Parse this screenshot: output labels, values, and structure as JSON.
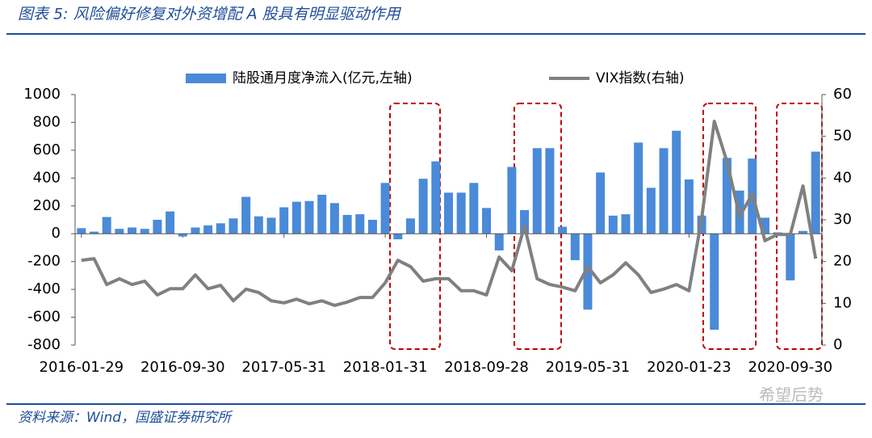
{
  "header": {
    "title": "图表 5: 风险偏好修复对外资增配 A 股具有明显驱动作用"
  },
  "chart_data": {
    "type": "bar",
    "categories": [
      "2016-01-29",
      null,
      null,
      null,
      null,
      null,
      null,
      null,
      "2016-09-30",
      null,
      null,
      null,
      null,
      null,
      null,
      null,
      "2017-05-31",
      null,
      null,
      null,
      null,
      null,
      null,
      null,
      "2018-01-31",
      null,
      null,
      null,
      null,
      null,
      null,
      null,
      "2018-09-28",
      null,
      null,
      null,
      null,
      null,
      null,
      null,
      "2019-05-31",
      null,
      null,
      null,
      null,
      null,
      null,
      null,
      "2020-01-23",
      null,
      null,
      null,
      null,
      null,
      null,
      null,
      "2020-09-30",
      null,
      null
    ],
    "series": [
      {
        "name": "陆股通月度净流入(亿元,左轴)",
        "color": "#4a8ad8",
        "type": "bar",
        "values": [
          40,
          15,
          120,
          35,
          45,
          35,
          100,
          160,
          -20,
          45,
          60,
          75,
          110,
          265,
          125,
          115,
          190,
          230,
          235,
          280,
          220,
          135,
          140,
          100,
          365,
          -40,
          110,
          395,
          520,
          295,
          295,
          365,
          185,
          -120,
          480,
          170,
          615,
          615,
          50,
          -190,
          -545,
          440,
          130,
          140,
          655,
          330,
          615,
          740,
          390,
          130,
          -690,
          545,
          310,
          540,
          115,
          10,
          -335,
          20,
          590
        ]
      },
      {
        "name": "VIX指数(右轴)",
        "color": "#808080",
        "type": "line",
        "axis": "y2",
        "values": [
          20.3,
          20.7,
          14.5,
          15.9,
          14.5,
          15.3,
          12,
          13.5,
          13.5,
          16.8,
          13.5,
          14.3,
          10.6,
          13.4,
          12.6,
          10.6,
          10.1,
          11,
          9.9,
          10.6,
          9.5,
          10.3,
          11.4,
          11.4,
          14.9,
          20.3,
          18.8,
          15.3,
          15.9,
          15.9,
          13,
          13,
          12,
          21.1,
          17.8,
          28.5,
          15.9,
          14.5,
          13.9,
          13,
          18.8,
          14.9,
          16.8,
          19.7,
          16.8,
          12.6,
          13.4,
          14.5,
          13,
          30.4,
          53.6,
          43.9,
          30.8,
          36.2,
          25,
          26.5,
          26.5,
          38.1,
          20.7
        ]
      }
    ],
    "ylim": [
      -800,
      1000
    ],
    "yticks": [
      -800,
      -600,
      -400,
      -200,
      0,
      200,
      400,
      600,
      800,
      1000
    ],
    "y2lim": [
      0,
      60
    ],
    "y2ticks": [
      0,
      10,
      20,
      30,
      40,
      50,
      60
    ]
  },
  "footer": {
    "source": "资料来源：Wind，国盛证券研究所",
    "watermark": "希望后势"
  }
}
